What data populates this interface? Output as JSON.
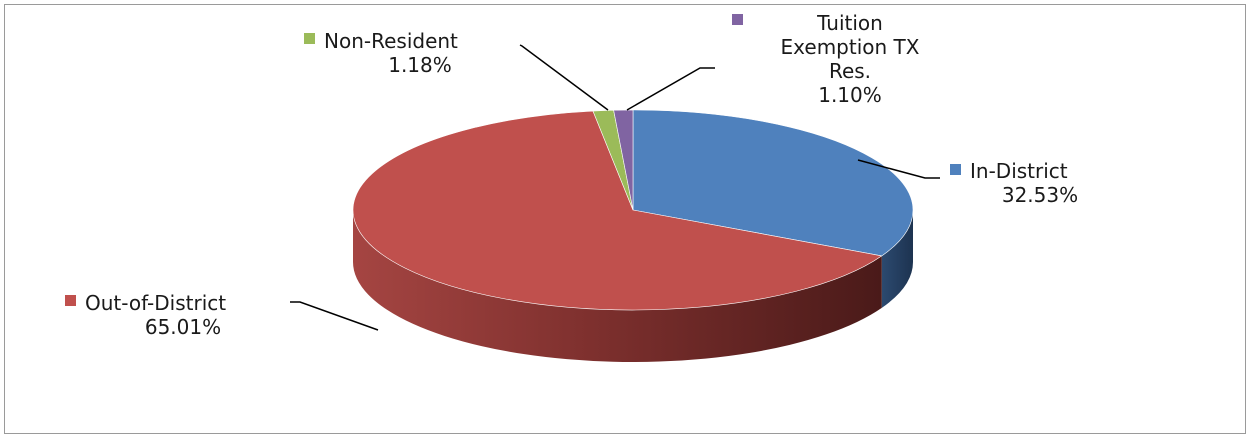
{
  "chart_data": {
    "type": "pie",
    "title": "",
    "style": "3d-exploded-none",
    "legend": "none",
    "categories": [
      "In-District",
      "Out-of-District",
      "Non-Resident",
      "Tuition Exemption TX Res."
    ],
    "values": [
      32.53,
      65.01,
      1.18,
      1.1
    ],
    "value_labels": [
      "32.53%",
      "65.01%",
      "1.18%",
      "1.10%"
    ],
    "label_lines": {
      "In-District": [
        "In-District"
      ],
      "Out-of-District": [
        "Out-of-District"
      ],
      "Non-Resident": [
        "Non-Resident"
      ],
      "Tuition Exemption TX Res.": [
        "Tuition",
        "Exemption TX",
        "Res."
      ]
    },
    "colors": {
      "In-District": "#4f81bd",
      "Out-of-District": "#c0504d",
      "Non-Resident": "#9bbb59",
      "Tuition Exemption TX Res.": "#8064a2"
    }
  }
}
